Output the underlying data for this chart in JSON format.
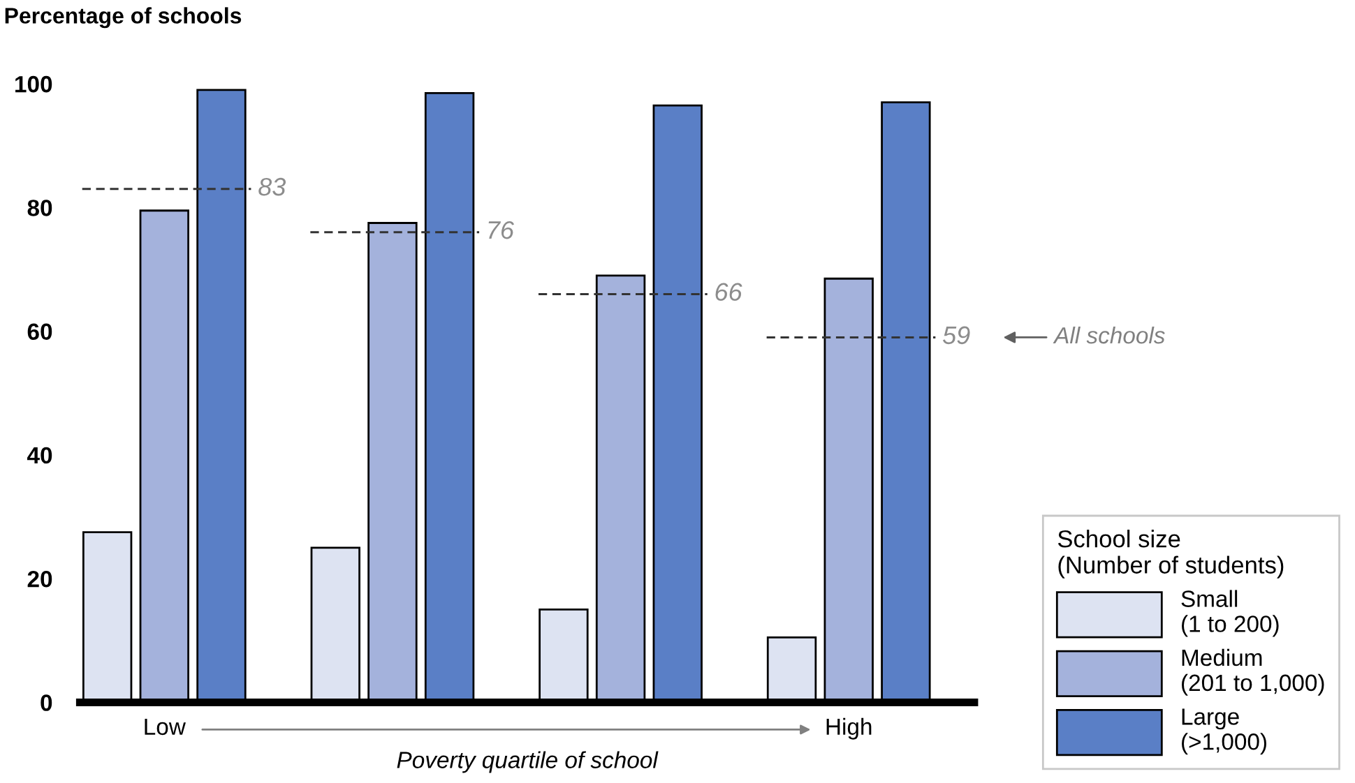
{
  "chart_data": {
    "type": "bar",
    "ylabel": "Percentage of schools",
    "xlabel": "Poverty quartile of school",
    "categories": [
      "Low",
      null,
      null,
      "High"
    ],
    "series": [
      {
        "name": "Small\n(1 to 200)",
        "color": "#dde3f2",
        "values": [
          27.5,
          25,
          15,
          10.5
        ]
      },
      {
        "name": "Medium\n(201 to 1,000)",
        "color": "#a4b2dc",
        "values": [
          79.5,
          77.5,
          69,
          68.5
        ]
      },
      {
        "name": "Large\n(>1,000)",
        "color": "#5a7fc6",
        "values": [
          99,
          98.5,
          96.5,
          97
        ]
      }
    ],
    "ref_lines": [
      {
        "axis": "y",
        "value": 83,
        "label": "83",
        "color": "#333333",
        "line_style": "dashed"
      },
      {
        "axis": "y",
        "value": 76,
        "label": "76",
        "color": "#333333",
        "line_style": "dashed"
      },
      {
        "axis": "y",
        "value": 66,
        "label": "66",
        "color": "#333333",
        "line_style": "dashed"
      },
      {
        "axis": "y",
        "value": 59,
        "label": "59",
        "color": "#333333",
        "line_style": "dashed"
      }
    ],
    "annotations": [
      "All schools"
    ],
    "legend_title": "School size\n(Number of students)",
    "legend": "bottom right",
    "ylim": [
      0,
      100
    ],
    "yticks": [
      0,
      20,
      40,
      60,
      80,
      100
    ],
    "grid": false
  }
}
